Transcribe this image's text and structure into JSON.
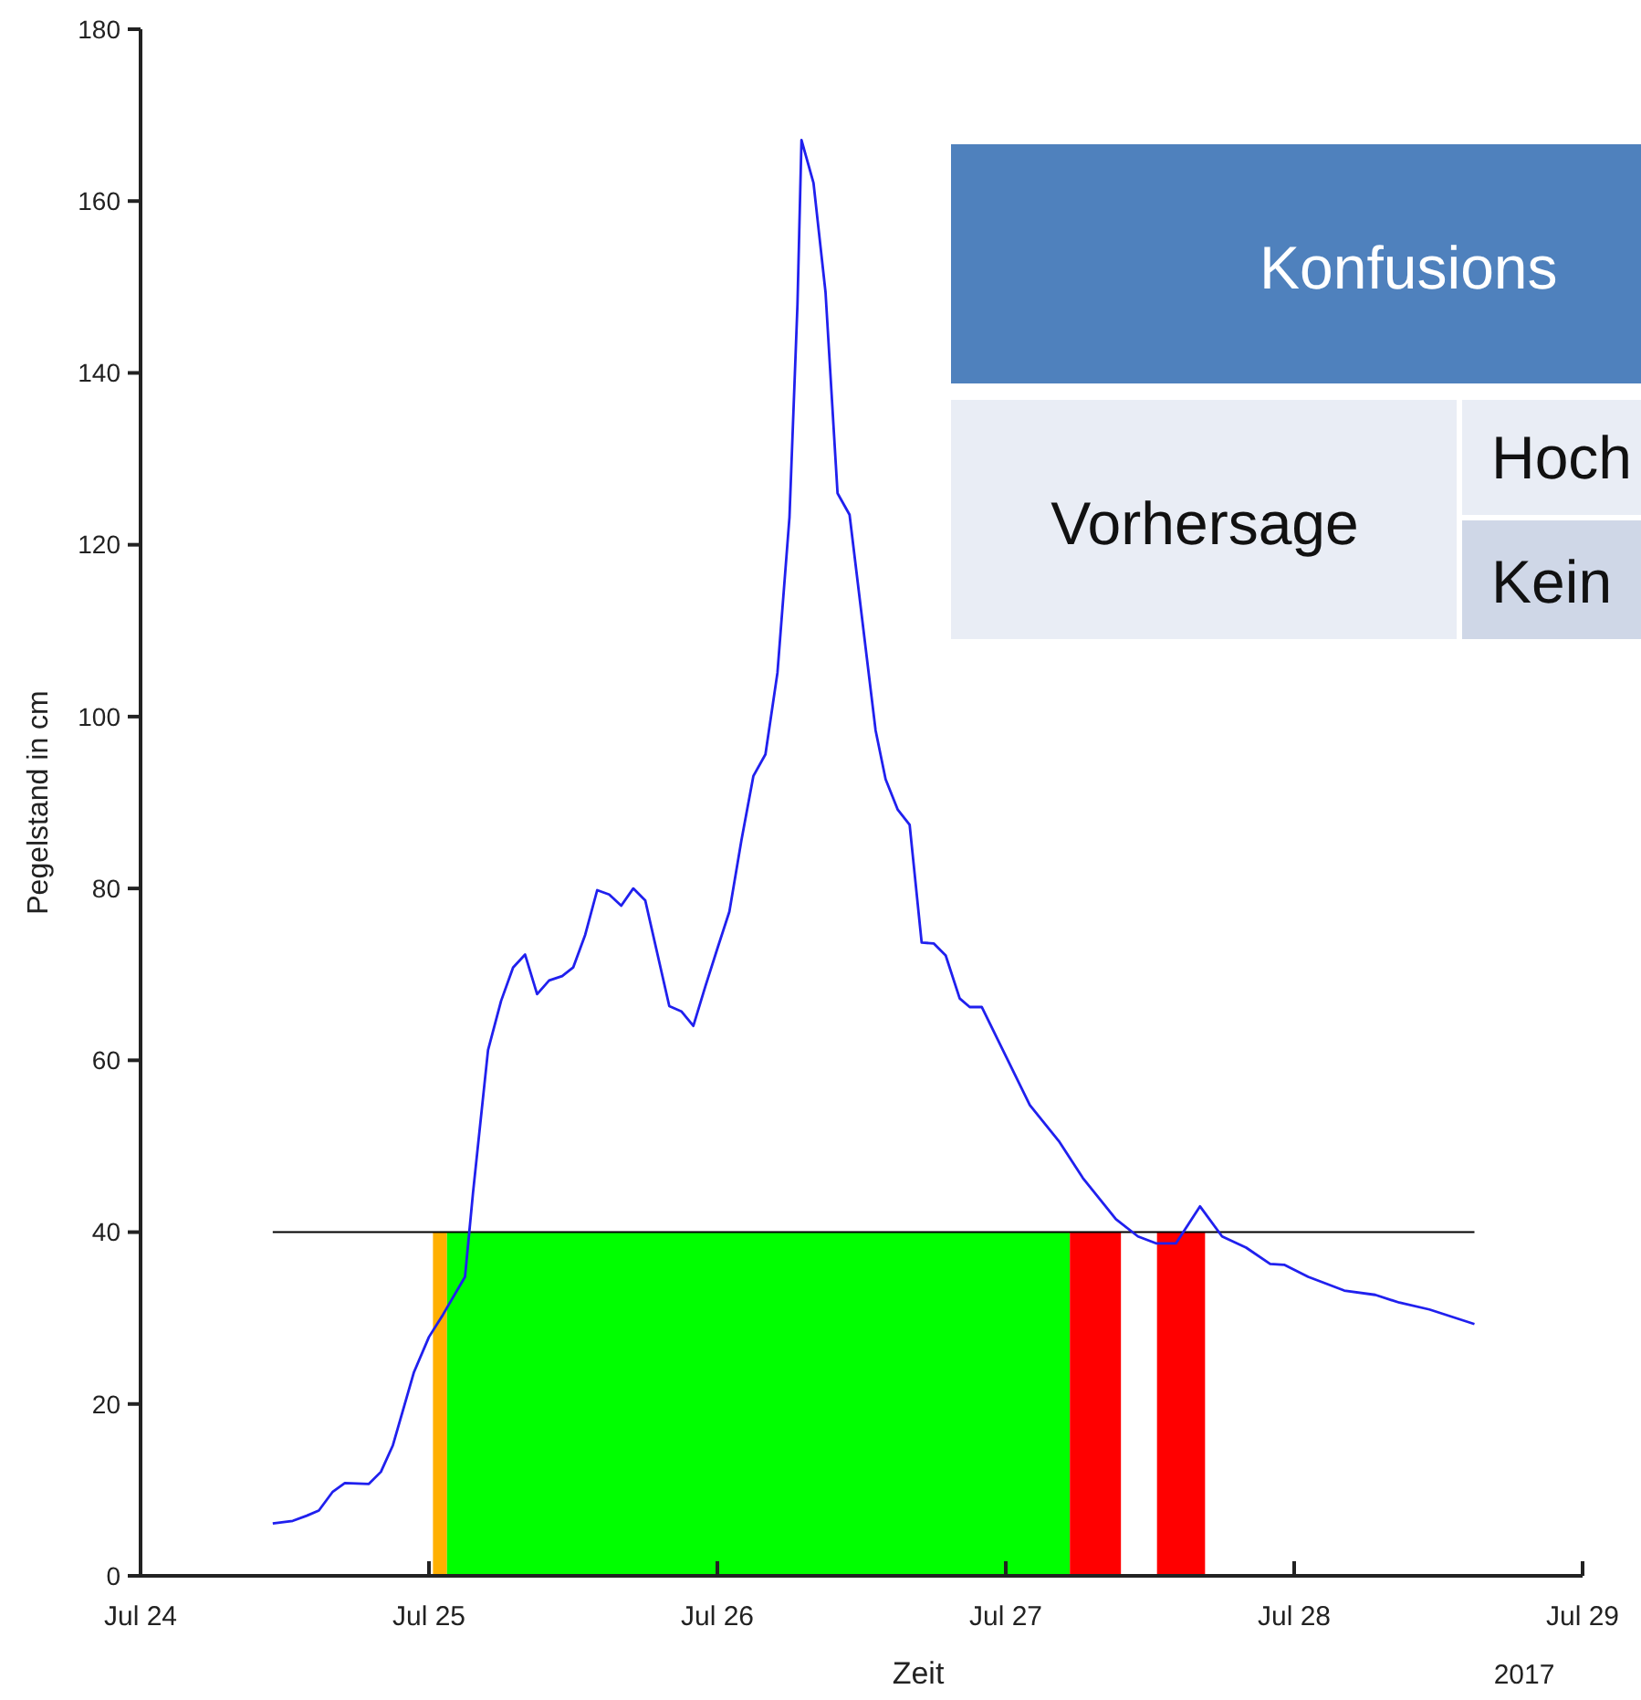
{
  "chart_data": {
    "type": "line",
    "xlabel": "Zeit",
    "ylabel": "Pegelstand in cm",
    "x": [
      "2017-07-24T11:00",
      "2017-07-24T12:40",
      "2017-07-24T13:50",
      "2017-07-24T14:50",
      "2017-07-24T16:00",
      "2017-07-24T17:00",
      "2017-07-24T19:00",
      "2017-07-24T20:00",
      "2017-07-24T21:00",
      "2017-07-24T22:45",
      "2017-07-25T00:00",
      "2017-07-25T01:10",
      "2017-07-25T03:00",
      "2017-07-25T03:40",
      "2017-07-25T04:55",
      "2017-07-25T06:00",
      "2017-07-25T07:00",
      "2017-07-25T08:00",
      "2017-07-25T09:00",
      "2017-07-25T10:00",
      "2017-07-25T11:05",
      "2017-07-25T12:00",
      "2017-07-25T13:00",
      "2017-07-25T14:00",
      "2017-07-25T15:00",
      "2017-07-25T16:00",
      "2017-07-25T17:00",
      "2017-07-25T18:00",
      "2017-07-25T20:00",
      "2017-07-25T21:00",
      "2017-07-25T22:00",
      "2017-07-25T23:00",
      "2017-07-26T00:00",
      "2017-07-26T01:00",
      "2017-07-26T02:00",
      "2017-07-26T03:00",
      "2017-07-26T04:00",
      "2017-07-26T05:00",
      "2017-07-26T06:00",
      "2017-07-26T06:40",
      "2017-07-26T07:00",
      "2017-07-26T08:00",
      "2017-07-26T09:00",
      "2017-07-26T10:00",
      "2017-07-26T11:00",
      "2017-07-26T13:10",
      "2017-07-26T14:00",
      "2017-07-26T15:00",
      "2017-07-26T16:00",
      "2017-07-26T17:00",
      "2017-07-26T18:00",
      "2017-07-26T19:00",
      "2017-07-26T20:10",
      "2017-07-26T21:00",
      "2017-07-26T22:00",
      "2017-07-27T00:00",
      "2017-07-27T02:00",
      "2017-07-27T04:25",
      "2017-07-27T06:25",
      "2017-07-27T09:10",
      "2017-07-27T11:00",
      "2017-07-27T12:30",
      "2017-07-27T14:10",
      "2017-07-27T16:10",
      "2017-07-27T18:00",
      "2017-07-27T20:00",
      "2017-07-27T22:00",
      "2017-07-27T23:10",
      "2017-07-28T01:10",
      "2017-07-28T04:10",
      "2017-07-28T06:45",
      "2017-07-28T08:45",
      "2017-07-28T11:15",
      "2017-07-28T15:00"
    ],
    "series": [
      {
        "color": "#2020ee",
        "values": [
          6.1,
          6.4,
          7.0,
          7.6,
          9.8,
          10.8,
          10.7,
          12.1,
          15.2,
          23.7,
          27.8,
          30.4,
          34.8,
          44.6,
          61.2,
          66.9,
          70.8,
          72.3,
          67.7,
          69.3,
          69.8,
          70.8,
          74.6,
          79.8,
          79.3,
          78.0,
          80.0,
          78.6,
          66.3,
          65.7,
          64.0,
          68.6,
          73.0,
          77.3,
          85.6,
          93.1,
          95.6,
          105.1,
          123.2,
          148.0,
          167.1,
          162.1,
          149.4,
          126.0,
          123.5,
          98.4,
          92.7,
          89.2,
          87.4,
          73.7,
          73.6,
          72.2,
          67.2,
          66.2,
          66.2,
          60.5,
          54.8,
          50.6,
          46.3,
          41.5,
          39.5,
          38.7,
          38.7,
          43.0,
          39.5,
          38.2,
          36.3,
          36.2,
          34.8,
          33.2,
          32.7,
          31.8,
          31.0,
          29.3
        ]
      }
    ],
    "xlim": [
      "2017-07-24",
      "2017-07-29"
    ],
    "xticks": [
      {
        "value": "2017-07-24",
        "label": "Jul 24"
      },
      {
        "value": "2017-07-25",
        "label": "Jul 25"
      },
      {
        "value": "2017-07-26",
        "label": "Jul 26"
      },
      {
        "value": "2017-07-27",
        "label": "Jul 27"
      },
      {
        "value": "2017-07-28",
        "label": "Jul 28"
      },
      {
        "value": "2017-07-29",
        "label": "Jul 29"
      }
    ],
    "ylim": [
      0,
      180
    ],
    "yticks": [
      0,
      20,
      40,
      60,
      80,
      100,
      120,
      140,
      160,
      180
    ],
    "ref_lines": [
      {
        "axis": "y",
        "value": 40,
        "color": "#000000"
      }
    ],
    "bands": [
      {
        "axis": "x",
        "from": "2017-07-25T00:20",
        "to": "2017-07-25T01:30",
        "color": "#ffb000"
      },
      {
        "axis": "x",
        "from": "2017-07-25T01:30",
        "to": "2017-07-27T05:20",
        "color": "#00ff00"
      },
      {
        "axis": "x",
        "from": "2017-07-27T05:20",
        "to": "2017-07-27T09:35",
        "color": "#ff0000"
      },
      {
        "axis": "x",
        "from": "2017-07-27T12:35",
        "to": "2017-07-27T16:35",
        "color": "#ff0000"
      }
    ],
    "annotations": [
      "2017",
      "Konfusions",
      "Vorhersage",
      "Hoch",
      "Kein"
    ],
    "grid": false,
    "marker": "none",
    "line_style": "solid"
  }
}
